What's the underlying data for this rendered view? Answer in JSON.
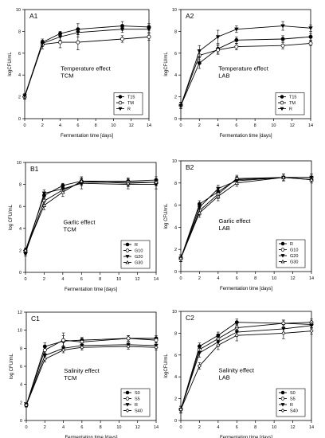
{
  "chart_data": [
    {
      "type": "line",
      "panel_label": "A1",
      "annotation": [
        "Temperature effect",
        "TCM"
      ],
      "xlabel": "Fermentation time [days]",
      "ylabel": "logCFU/mL",
      "xlim": [
        0,
        14
      ],
      "ylim": [
        0,
        10
      ],
      "xticks": [
        "0",
        "2",
        "4",
        "6",
        "8",
        "10",
        "12",
        "14"
      ],
      "yticks": [
        "0",
        "2",
        "4",
        "6",
        "8",
        "10"
      ],
      "legend_position": "bottom-right",
      "x": [
        0,
        2,
        4,
        6,
        11,
        14
      ],
      "series": [
        {
          "name": "T15",
          "marker": "filled-circle",
          "values": [
            2.0,
            7.0,
            7.8,
            8.2,
            8.5,
            8.4
          ],
          "err": [
            0.2,
            0.3,
            0.2,
            0.5,
            0.4,
            0.3
          ]
        },
        {
          "name": "TM",
          "marker": "open-circle",
          "values": [
            2.0,
            6.8,
            7.0,
            7.0,
            7.3,
            7.5
          ],
          "err": [
            0.2,
            0.4,
            0.5,
            0.7,
            0.3,
            0.3
          ]
        },
        {
          "name": "R",
          "marker": "filled-triangle-down",
          "values": [
            2.1,
            6.9,
            7.5,
            7.9,
            8.2,
            8.2
          ],
          "err": [
            0.2,
            0.3,
            0.3,
            0.4,
            0.3,
            0.3
          ]
        }
      ]
    },
    {
      "type": "line",
      "panel_label": "A2",
      "annotation": [
        "Temperature effect",
        "LAB"
      ],
      "xlabel": "Fermentation time [days]",
      "ylabel": "logCFU/mL",
      "xlim": [
        0,
        14
      ],
      "ylim": [
        0,
        10
      ],
      "xticks": [
        "0",
        "2",
        "4",
        "6",
        "8",
        "10",
        "12",
        "14"
      ],
      "yticks": [
        "0",
        "2",
        "4",
        "6",
        "8",
        "10"
      ],
      "legend_position": "bottom-right",
      "x": [
        0,
        2,
        4,
        6,
        11,
        14
      ],
      "series": [
        {
          "name": "T15",
          "marker": "filled-circle",
          "values": [
            1.2,
            5.1,
            6.4,
            7.2,
            7.3,
            7.5
          ],
          "err": [
            0.3,
            0.5,
            0.4,
            0.3,
            0.3,
            0.3
          ]
        },
        {
          "name": "TM",
          "marker": "open-circle",
          "values": [
            1.2,
            5.8,
            6.3,
            6.6,
            6.7,
            6.9
          ],
          "err": [
            0.3,
            0.4,
            0.4,
            0.3,
            0.3,
            0.2
          ]
        },
        {
          "name": "R",
          "marker": "filled-triangle-down",
          "values": [
            1.2,
            6.2,
            7.5,
            8.2,
            8.5,
            8.3
          ],
          "err": [
            0.3,
            0.5,
            0.6,
            0.3,
            0.4,
            0.3
          ]
        }
      ]
    },
    {
      "type": "line",
      "panel_label": "B1",
      "annotation": [
        "Garlic effect",
        "TCM"
      ],
      "xlabel": "Fermentation time [days]",
      "ylabel": "log CFU/mL",
      "xlim": [
        0,
        14
      ],
      "ylim": [
        0,
        10
      ],
      "xticks": [
        "0",
        "2",
        "4",
        "6",
        "8",
        "10",
        "12",
        "14"
      ],
      "yticks": [
        "0",
        "2",
        "4",
        "6",
        "8",
        "10"
      ],
      "legend_position": "bottom-right",
      "x": [
        0,
        2,
        4,
        6,
        11,
        14
      ],
      "series": [
        {
          "name": "R",
          "marker": "filled-circle",
          "values": [
            2.0,
            7.0,
            7.9,
            8.3,
            8.3,
            8.4
          ],
          "err": [
            0.2,
            0.3,
            0.2,
            0.3,
            0.3,
            0.3
          ]
        },
        {
          "name": "G10",
          "marker": "open-circle",
          "values": [
            1.8,
            6.5,
            7.5,
            8.2,
            8.2,
            8.2
          ],
          "err": [
            0.2,
            0.3,
            0.3,
            0.3,
            0.3,
            0.3
          ]
        },
        {
          "name": "G20",
          "marker": "filled-triangle-down",
          "values": [
            1.7,
            7.2,
            7.6,
            8.1,
            8.0,
            8.0
          ],
          "err": [
            0.2,
            0.3,
            0.4,
            0.5,
            0.4,
            0.4
          ]
        },
        {
          "name": "G30",
          "marker": "open-triangle-up",
          "values": [
            2.0,
            6.1,
            7.3,
            8.3,
            8.1,
            8.2
          ],
          "err": [
            0.2,
            0.4,
            0.4,
            0.4,
            0.3,
            0.3
          ]
        }
      ]
    },
    {
      "type": "line",
      "panel_label": "B2",
      "annotation": [
        "Garlic effect",
        "LAB"
      ],
      "xlabel": "Fermentation time [days]",
      "ylabel": "log CFU/mL",
      "xlim": [
        0,
        14
      ],
      "ylim": [
        0,
        10
      ],
      "xticks": [
        "0",
        "2",
        "4",
        "6",
        "8",
        "10",
        "12",
        "14"
      ],
      "yticks": [
        "0",
        "2",
        "4",
        "6",
        "8",
        "10"
      ],
      "legend_position": "bottom-right",
      "x": [
        0,
        2,
        4,
        6,
        11,
        14
      ],
      "series": [
        {
          "name": "R",
          "marker": "filled-circle",
          "values": [
            1.2,
            6.1,
            7.2,
            8.3,
            8.5,
            8.3
          ],
          "err": [
            0.3,
            0.3,
            0.4,
            0.3,
            0.3,
            0.3
          ]
        },
        {
          "name": "G10",
          "marker": "open-circle",
          "values": [
            1.2,
            5.5,
            7.0,
            8.4,
            8.5,
            8.5
          ],
          "err": [
            0.3,
            0.4,
            0.4,
            0.3,
            0.3,
            0.3
          ]
        },
        {
          "name": "G20",
          "marker": "filled-triangle-down",
          "values": [
            1.2,
            5.8,
            7.5,
            8.2,
            8.5,
            8.5
          ],
          "err": [
            0.3,
            0.4,
            0.3,
            0.3,
            0.3,
            0.3
          ]
        },
        {
          "name": "G30",
          "marker": "open-triangle-up",
          "values": [
            1.2,
            5.3,
            6.8,
            8.0,
            8.5,
            8.3
          ],
          "err": [
            0.3,
            0.4,
            0.4,
            0.3,
            0.3,
            0.3
          ]
        }
      ]
    },
    {
      "type": "line",
      "panel_label": "C1",
      "annotation": [
        "Salinity effect",
        "TCM"
      ],
      "xlabel": "Fermentation time [days]",
      "ylabel": "log CFU/mL",
      "xlim": [
        0,
        14
      ],
      "ylim": [
        0,
        12
      ],
      "xticks": [
        "0",
        "2",
        "4",
        "6",
        "8",
        "10",
        "12",
        "14"
      ],
      "yticks": [
        "0",
        "2",
        "4",
        "6",
        "8",
        "10",
        "12"
      ],
      "legend_position": "bottom-right",
      "x": [
        0,
        2,
        4,
        6,
        11,
        14
      ],
      "series": [
        {
          "name": "S0",
          "marker": "filled-circle",
          "values": [
            1.7,
            8.2,
            8.8,
            8.9,
            9.1,
            9.1
          ],
          "err": [
            0.2,
            0.4,
            0.6,
            0.3,
            0.3,
            0.3
          ]
        },
        {
          "name": "S5",
          "marker": "open-circle",
          "values": [
            1.7,
            7.8,
            8.9,
            8.7,
            9.1,
            8.9
          ],
          "err": [
            0.2,
            0.4,
            0.8,
            0.4,
            0.3,
            0.3
          ]
        },
        {
          "name": "R",
          "marker": "filled-triangle-down",
          "values": [
            1.7,
            7.2,
            8.0,
            8.3,
            8.4,
            8.3
          ],
          "err": [
            0.2,
            0.3,
            0.3,
            0.3,
            0.3,
            0.3
          ]
        },
        {
          "name": "S40",
          "marker": "open-diamond",
          "values": [
            1.7,
            6.8,
            7.8,
            8.1,
            8.2,
            8.1
          ],
          "err": [
            0.2,
            0.3,
            0.3,
            0.3,
            0.3,
            0.3
          ]
        }
      ]
    },
    {
      "type": "line",
      "panel_label": "C2",
      "annotation": [
        "Salinity effect",
        "LAB"
      ],
      "xlabel": "Fermentation time [days]",
      "ylabel": "logCFU/mL",
      "xlim": [
        0,
        14
      ],
      "ylim": [
        0,
        10
      ],
      "xticks": [
        "0",
        "2",
        "4",
        "6",
        "8",
        "10",
        "12",
        "14"
      ],
      "yticks": [
        "0",
        "2",
        "4",
        "6",
        "8",
        "10"
      ],
      "legend_position": "bottom-right",
      "x": [
        0,
        2,
        4,
        6,
        11,
        14
      ],
      "series": [
        {
          "name": "S0",
          "marker": "filled-circle",
          "values": [
            1.0,
            6.8,
            7.8,
            9.0,
            8.9,
            8.8
          ],
          "err": [
            0.3,
            0.3,
            0.3,
            0.3,
            0.3,
            0.3
          ]
        },
        {
          "name": "S5",
          "marker": "open-circle",
          "values": [
            1.0,
            6.5,
            7.5,
            8.5,
            8.9,
            9.0
          ],
          "err": [
            0.3,
            0.3,
            0.4,
            0.3,
            0.3,
            0.3
          ]
        },
        {
          "name": "R",
          "marker": "filled-triangle-down",
          "values": [
            1.0,
            6.2,
            7.2,
            8.1,
            8.4,
            8.7
          ],
          "err": [
            0.3,
            0.4,
            0.4,
            0.4,
            0.4,
            0.3
          ]
        },
        {
          "name": "S40",
          "marker": "open-diamond",
          "values": [
            1.0,
            5.0,
            6.9,
            7.8,
            8.0,
            8.2
          ],
          "err": [
            0.3,
            0.3,
            0.4,
            0.5,
            0.5,
            0.3
          ]
        }
      ]
    }
  ]
}
